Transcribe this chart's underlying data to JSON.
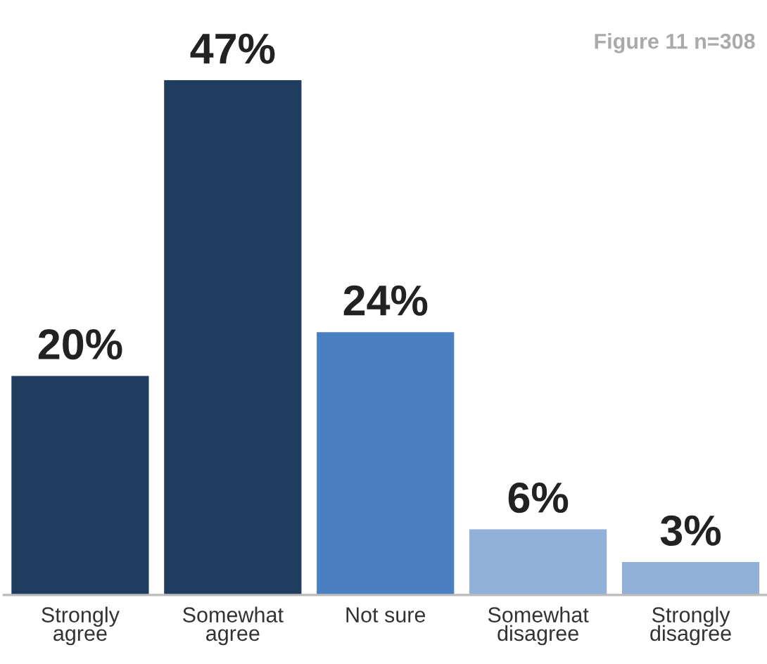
{
  "chart_data": {
    "type": "bar",
    "categories": [
      "Strongly\nagree",
      "Somewhat\nagree",
      "Not sure",
      "Somewhat\ndisagree",
      "Strongly\ndisagree"
    ],
    "values": [
      20,
      47,
      24,
      6,
      3
    ],
    "colors": [
      "#1f3d5f",
      "#1f3d5f",
      "#4a80c2",
      "#92b1d9",
      "#92b1d9"
    ],
    "value_labels": [
      "20%",
      "47%",
      "24%",
      "6%",
      "3%"
    ],
    "tick_labels": "x",
    "grid": false,
    "legend": false,
    "annotations": [
      "Figure 11 n=308"
    ]
  }
}
